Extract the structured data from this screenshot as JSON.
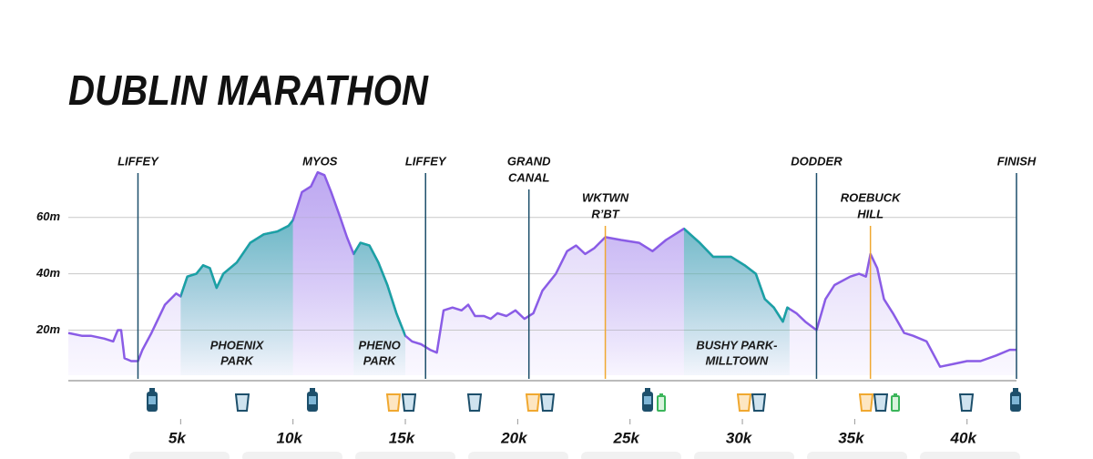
{
  "chart_data": {
    "type": "line",
    "title": "DUBLIN MARATHON",
    "x": [
      0,
      0.6,
      1.0,
      1.6,
      2.0,
      2.2,
      2.35,
      2.5,
      2.8,
      3.1,
      3.3,
      3.7,
      4.3,
      4.8,
      5.0,
      5.3,
      5.7,
      6.0,
      6.3,
      6.6,
      6.9,
      7.5,
      8.1,
      8.7,
      9.3,
      9.8,
      10.0,
      10.4,
      10.8,
      11.1,
      11.4,
      11.7,
      12.1,
      12.4,
      12.7,
      13.0,
      13.4,
      13.8,
      14.2,
      14.6,
      15.0,
      15.3,
      15.7,
      16.1,
      16.4,
      16.7,
      17.1,
      17.5,
      17.8,
      18.1,
      18.5,
      18.8,
      19.1,
      19.5,
      19.9,
      20.3,
      20.7,
      21.1,
      21.7,
      22.2,
      22.6,
      23.0,
      23.4,
      23.9,
      24.6,
      25.4,
      26.0,
      26.6,
      27.2,
      27.4,
      28.1,
      28.7,
      29.5,
      30.1,
      30.6,
      31.0,
      31.4,
      31.8,
      32.0,
      32.4,
      32.8,
      33.3,
      33.7,
      34.1,
      34.8,
      35.2,
      35.5,
      35.7,
      36.0,
      36.3,
      36.7,
      37.2,
      37.6,
      38.2,
      38.8,
      39.4,
      40.0,
      40.6,
      41.3,
      41.9,
      42.2
    ],
    "values": [
      19,
      18,
      18,
      17,
      16,
      20,
      20,
      10,
      9,
      9,
      13,
      19,
      29,
      33,
      32,
      39,
      40,
      43,
      42,
      35,
      40,
      44,
      51,
      54,
      55,
      57,
      59,
      69,
      71,
      76,
      75,
      69,
      60,
      53,
      47,
      51,
      50,
      44,
      36,
      26,
      18,
      16,
      15,
      13,
      12,
      27,
      28,
      27,
      29,
      25,
      25,
      24,
      26,
      25,
      27,
      24,
      26,
      34,
      40,
      48,
      50,
      47,
      49,
      53,
      52,
      51,
      48,
      52,
      55,
      56,
      51,
      46,
      46,
      43,
      40,
      31,
      28,
      23,
      28,
      26,
      23,
      20,
      31,
      36,
      39,
      40,
      39,
      47,
      42,
      31,
      26,
      19,
      18,
      16,
      7,
      8,
      9,
      9,
      11,
      13,
      13
    ],
    "color": "#8a5ce6",
    "xlim": [
      0,
      42.2
    ],
    "ylim": [
      4,
      78
    ],
    "xticks": [
      {
        "value": 5,
        "label": "5k"
      },
      {
        "value": 10,
        "label": "10k"
      },
      {
        "value": 15,
        "label": "15k"
      },
      {
        "value": 20,
        "label": "20k"
      },
      {
        "value": 25,
        "label": "25k"
      },
      {
        "value": 30,
        "label": "30k"
      },
      {
        "value": 35,
        "label": "35k"
      },
      {
        "value": 40,
        "label": "40k"
      }
    ],
    "yticks": [
      {
        "value": 20,
        "label": "20m"
      },
      {
        "value": 40,
        "label": "40m"
      },
      {
        "value": 60,
        "label": "60m"
      }
    ],
    "grid": true,
    "annotations": [
      {
        "lines": [
          "LIFFEY"
        ],
        "x": 3.1,
        "color": "#1d4f6b",
        "line": true
      },
      {
        "lines": [
          "MYOS"
        ],
        "x": 11.2,
        "color": "#1d4f6b",
        "line": false
      },
      {
        "lines": [
          "LIFFEY"
        ],
        "x": 15.9,
        "color": "#1d4f6b",
        "line": true
      },
      {
        "lines": [
          "GRAND",
          "CANAL"
        ],
        "x": 20.5,
        "color": "#1d4f6b",
        "line": true
      },
      {
        "lines": [
          "WKTWN",
          "R’BT"
        ],
        "x": 23.9,
        "color": "#f0a830",
        "line": true
      },
      {
        "lines": [
          "DODDER"
        ],
        "x": 33.3,
        "color": "#1d4f6b",
        "line": true
      },
      {
        "lines": [
          "ROEBUCK",
          "HILL"
        ],
        "x": 35.7,
        "color": "#f0a830",
        "line": true
      },
      {
        "lines": [
          "FINISH"
        ],
        "x": 42.2,
        "color": "#1d4f6b",
        "line": true
      }
    ],
    "regions": [
      {
        "from": 5.0,
        "to": 10.0,
        "color": "#1aa3a3",
        "lines": [
          "PHOENIX",
          "PARK"
        ]
      },
      {
        "from": 10.0,
        "to": 12.7,
        "color": "#b49cf0",
        "lines": []
      },
      {
        "from": 12.7,
        "to": 15.0,
        "color": "#1aa3a3",
        "lines": [
          "PHENO",
          "PARK"
        ]
      },
      {
        "from": 23.9,
        "to": 27.4,
        "color": "#b49cf0",
        "lines": []
      },
      {
        "from": 27.4,
        "to": 32.1,
        "color": "#1aa3a3",
        "lines": [
          "BUSHY PARK-",
          "MILLTOWN"
        ]
      }
    ]
  }
}
